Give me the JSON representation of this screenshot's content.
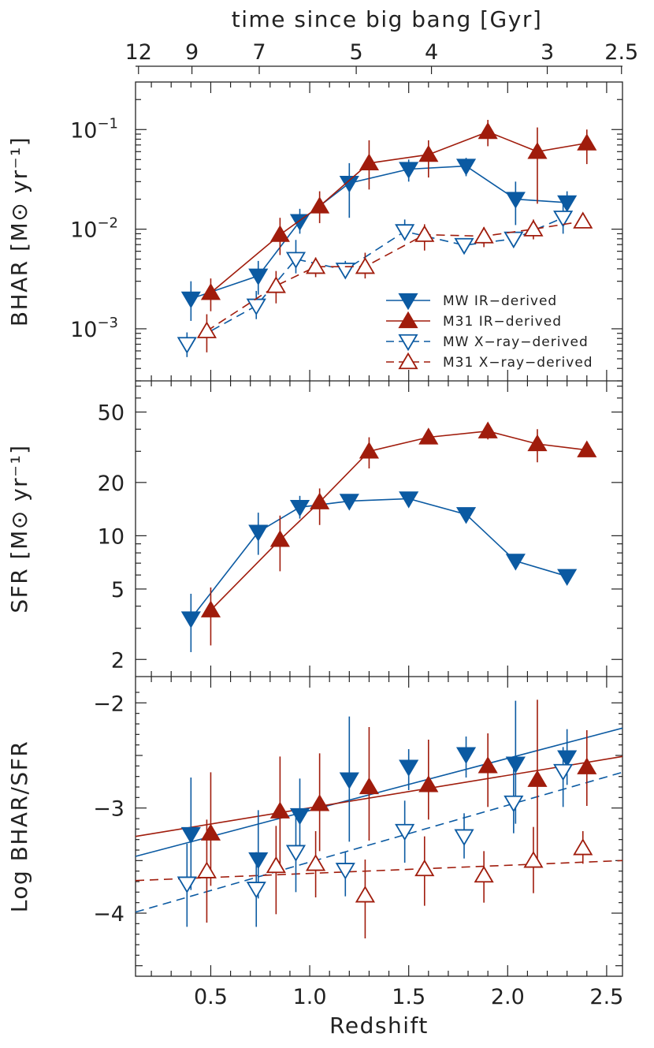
{
  "chart_data": {
    "type": "scatter",
    "colors": {
      "mw": "#0b5aa2",
      "m31": "#a01c0c"
    },
    "top_axis": {
      "label": "time since big bang [Gyr]",
      "ticks": [
        {
          "z": 0.135,
          "label": "12"
        },
        {
          "z": 0.405,
          "label": "9"
        },
        {
          "z": 0.745,
          "label": "7"
        },
        {
          "z": 1.235,
          "label": "5"
        },
        {
          "z": 1.615,
          "label": "4"
        },
        {
          "z": 2.2,
          "label": "3"
        },
        {
          "z": 2.575,
          "label": "2.5"
        }
      ]
    },
    "x_axis": {
      "label": "Redshift",
      "xlim": [
        0.12,
        2.58
      ],
      "ticks": [
        {
          "value": 0.5,
          "label": "0.5"
        },
        {
          "value": 1.0,
          "label": "1.0"
        },
        {
          "value": 1.5,
          "label": "1.5"
        },
        {
          "value": 2.0,
          "label": "2.0"
        },
        {
          "value": 2.5,
          "label": "2.5"
        }
      ]
    },
    "panels": [
      {
        "id": "bhar",
        "ylabel": "BHAR [M⊙ yr⁻¹]",
        "scale": "log",
        "ylim": [
          0.0003,
          0.3
        ],
        "ticks": [
          {
            "value": 0.1,
            "base": "10",
            "exp": "−1"
          },
          {
            "value": 0.01,
            "base": "10",
            "exp": "−2"
          },
          {
            "value": 0.001,
            "base": "10",
            "exp": "−3"
          }
        ],
        "legend": {
          "position": "bottom-right",
          "entries": [
            {
              "label": "MW  IR−derived",
              "series": "mw_ir"
            },
            {
              "label": "M31  IR−derived",
              "series": "m31_ir"
            },
            {
              "label": "MW  X−ray−derived",
              "series": "mw_x"
            },
            {
              "label": "M31  X−ray−derived",
              "series": "m31_x"
            }
          ]
        },
        "series": [
          {
            "id": "mw_ir",
            "name": "MW IR-derived",
            "color": "mw",
            "marker": "down",
            "filled": true,
            "dashed": false,
            "points": [
              {
                "x": 0.4,
                "y": 0.002,
                "lo": 0.0012,
                "hi": 0.003
              },
              {
                "x": 0.74,
                "y": 0.0034,
                "lo": 0.0022,
                "hi": 0.0048
              },
              {
                "x": 0.95,
                "y": 0.012,
                "lo": 0.009,
                "hi": 0.016
              },
              {
                "x": 1.2,
                "y": 0.029,
                "lo": 0.013,
                "hi": 0.046
              },
              {
                "x": 1.5,
                "y": 0.04,
                "lo": 0.03,
                "hi": 0.05
              },
              {
                "x": 1.79,
                "y": 0.043,
                "lo": 0.034,
                "hi": 0.052
              },
              {
                "x": 2.04,
                "y": 0.02,
                "lo": 0.011,
                "hi": 0.03
              },
              {
                "x": 2.3,
                "y": 0.0185,
                "lo": 0.0135,
                "hi": 0.024
              }
            ]
          },
          {
            "id": "m31_ir",
            "name": "M31 IR-derived",
            "color": "m31",
            "marker": "up",
            "filled": true,
            "dashed": false,
            "points": [
              {
                "x": 0.5,
                "y": 0.0023,
                "lo": 0.0015,
                "hi": 0.0032
              },
              {
                "x": 0.85,
                "y": 0.0088,
                "lo": 0.0055,
                "hi": 0.013
              },
              {
                "x": 1.05,
                "y": 0.017,
                "lo": 0.0115,
                "hi": 0.024
              },
              {
                "x": 1.3,
                "y": 0.046,
                "lo": 0.025,
                "hi": 0.078
              },
              {
                "x": 1.6,
                "y": 0.056,
                "lo": 0.033,
                "hi": 0.078
              },
              {
                "x": 1.9,
                "y": 0.095,
                "lo": 0.068,
                "hi": 0.125
              },
              {
                "x": 2.15,
                "y": 0.06,
                "lo": 0.018,
                "hi": 0.105
              },
              {
                "x": 2.4,
                "y": 0.073,
                "lo": 0.045,
                "hi": 0.1
              }
            ]
          },
          {
            "id": "mw_x",
            "name": "MW X-ray-derived",
            "color": "mw",
            "marker": "down",
            "filled": false,
            "dashed": true,
            "points": [
              {
                "x": 0.38,
                "y": 0.0007,
                "lo": 0.00052,
                "hi": 0.00092
              },
              {
                "x": 0.73,
                "y": 0.0017,
                "lo": 0.00125,
                "hi": 0.0024
              },
              {
                "x": 0.93,
                "y": 0.005,
                "lo": 0.0036,
                "hi": 0.0078
              },
              {
                "x": 1.18,
                "y": 0.0039,
                "lo": 0.0032,
                "hi": 0.0048
              },
              {
                "x": 1.48,
                "y": 0.0095,
                "lo": 0.0077,
                "hi": 0.0125
              },
              {
                "x": 1.78,
                "y": 0.0069,
                "lo": 0.006,
                "hi": 0.008
              },
              {
                "x": 2.03,
                "y": 0.008,
                "lo": 0.007,
                "hi": 0.0092
              },
              {
                "x": 2.28,
                "y": 0.013,
                "lo": 0.009,
                "hi": 0.018
              }
            ]
          },
          {
            "id": "m31_x",
            "name": "M31 X-ray-derived",
            "color": "m31",
            "marker": "up",
            "filled": false,
            "dashed": true,
            "points": [
              {
                "x": 0.48,
                "y": 0.00095,
                "lo": 0.00058,
                "hi": 0.0014
              },
              {
                "x": 0.83,
                "y": 0.0027,
                "lo": 0.0018,
                "hi": 0.0038
              },
              {
                "x": 1.03,
                "y": 0.0042,
                "lo": 0.0033,
                "hi": 0.0052
              },
              {
                "x": 1.28,
                "y": 0.0042,
                "lo": 0.0032,
                "hi": 0.0058
              },
              {
                "x": 1.58,
                "y": 0.0088,
                "lo": 0.0061,
                "hi": 0.0112
              },
              {
                "x": 1.88,
                "y": 0.0085,
                "lo": 0.0066,
                "hi": 0.0105
              },
              {
                "x": 2.13,
                "y": 0.01,
                "lo": 0.0079,
                "hi": 0.0125
              },
              {
                "x": 2.38,
                "y": 0.012,
                "lo": 0.0105,
                "hi": 0.0138
              }
            ]
          }
        ]
      },
      {
        "id": "sfr",
        "ylabel": "SFR [M⊙ yr⁻¹]",
        "scale": "log",
        "ylim": [
          1.6,
          75
        ],
        "ticks": [
          {
            "value": 50,
            "label": "50"
          },
          {
            "value": 20,
            "label": "20"
          },
          {
            "value": 10,
            "label": "10"
          },
          {
            "value": 5,
            "label": "5"
          },
          {
            "value": 2,
            "label": "2"
          }
        ],
        "series": [
          {
            "id": "mw_sfr",
            "name": "MW",
            "color": "mw",
            "marker": "down",
            "filled": true,
            "dashed": false,
            "points": [
              {
                "x": 0.4,
                "y": 3.4,
                "lo": 2.2,
                "hi": 4.7
              },
              {
                "x": 0.74,
                "y": 10.5,
                "lo": 7.8,
                "hi": 13.5
              },
              {
                "x": 0.95,
                "y": 14.5,
                "lo": 12.5,
                "hi": 16.8
              },
              {
                "x": 1.2,
                "y": 15.7,
                "lo": 14.2,
                "hi": 17.2
              },
              {
                "x": 1.5,
                "y": 16.2,
                "lo": 15.0,
                "hi": 17.4
              },
              {
                "x": 1.79,
                "y": 13.2,
                "lo": 12.3,
                "hi": 14.1
              },
              {
                "x": 2.04,
                "y": 7.2,
                "lo": 6.7,
                "hi": 7.7
              },
              {
                "x": 2.3,
                "y": 5.9,
                "lo": 5.5,
                "hi": 6.3
              }
            ]
          },
          {
            "id": "m31_sfr",
            "name": "M31",
            "color": "m31",
            "marker": "up",
            "filled": true,
            "dashed": false,
            "points": [
              {
                "x": 0.5,
                "y": 3.8,
                "lo": 2.4,
                "hi": 5.1
              },
              {
                "x": 0.85,
                "y": 9.5,
                "lo": 6.3,
                "hi": 13.0
              },
              {
                "x": 1.05,
                "y": 15.5,
                "lo": 11.5,
                "hi": 18.5
              },
              {
                "x": 1.3,
                "y": 30.0,
                "lo": 24.0,
                "hi": 36.0
              },
              {
                "x": 1.6,
                "y": 36.0,
                "lo": 33.0,
                "hi": 39.0
              },
              {
                "x": 1.9,
                "y": 39.0,
                "lo": 35.0,
                "hi": 43.0
              },
              {
                "x": 2.15,
                "y": 33.0,
                "lo": 26.0,
                "hi": 40.0
              },
              {
                "x": 2.4,
                "y": 30.5,
                "lo": 28.0,
                "hi": 33.0
              }
            ]
          }
        ]
      },
      {
        "id": "ratio",
        "ylabel": "Log BHAR/SFR",
        "scale": "linear",
        "ylim": [
          -4.6,
          -1.75
        ],
        "ticks": [
          {
            "value": -2,
            "label": "−2"
          },
          {
            "value": -3,
            "label": "−3"
          },
          {
            "value": -4,
            "label": "−4"
          }
        ],
        "fits": [
          {
            "name": "MW IR fit",
            "color": "mw",
            "dashed": false,
            "x": [
              0.12,
              2.58
            ],
            "y": [
              -3.46,
              -2.24
            ]
          },
          {
            "name": "M31 IR fit",
            "color": "m31",
            "dashed": false,
            "x": [
              0.12,
              2.58
            ],
            "y": [
              -3.27,
              -2.51
            ]
          },
          {
            "name": "MW X-ray fit",
            "color": "mw",
            "dashed": true,
            "x": [
              0.12,
              2.58
            ],
            "y": [
              -3.99,
              -2.66
            ]
          },
          {
            "name": "M31 X-ray fit",
            "color": "m31",
            "dashed": true,
            "x": [
              0.12,
              2.58
            ],
            "y": [
              -3.69,
              -3.5
            ]
          }
        ],
        "series": [
          {
            "id": "mw_ir_ratio",
            "name": "MW IR-derived",
            "color": "mw",
            "marker": "down",
            "filled": true,
            "connect": false,
            "points": [
              {
                "x": 0.4,
                "y": -3.25,
                "lo": -3.78,
                "hi": -2.71
              },
              {
                "x": 0.74,
                "y": -3.49,
                "lo": -3.86,
                "hi": -3.02
              },
              {
                "x": 0.95,
                "y": -3.07,
                "lo": -3.38,
                "hi": -2.72
              },
              {
                "x": 1.2,
                "y": -2.73,
                "lo": -3.32,
                "hi": -2.13
              },
              {
                "x": 1.5,
                "y": -2.61,
                "lo": -2.83,
                "hi": -2.44
              },
              {
                "x": 1.79,
                "y": -2.49,
                "lo": -2.71,
                "hi": -2.32
              },
              {
                "x": 2.04,
                "y": -2.58,
                "lo": -3.15,
                "hi": -1.98
              },
              {
                "x": 2.3,
                "y": -2.52,
                "lo": -2.78,
                "hi": -2.25
              }
            ]
          },
          {
            "id": "m31_ir_ratio",
            "name": "M31 IR-derived",
            "color": "m31",
            "marker": "up",
            "filled": true,
            "connect": false,
            "points": [
              {
                "x": 0.5,
                "y": -3.24,
                "lo": -3.74,
                "hi": -2.66
              },
              {
                "x": 0.85,
                "y": -3.03,
                "lo": -3.54,
                "hi": -2.51
              },
              {
                "x": 1.05,
                "y": -2.96,
                "lo": -3.41,
                "hi": -2.48
              },
              {
                "x": 1.3,
                "y": -2.8,
                "lo": -3.31,
                "hi": -2.23
              },
              {
                "x": 1.6,
                "y": -2.78,
                "lo": -3.11,
                "hi": -2.35
              },
              {
                "x": 1.9,
                "y": -2.6,
                "lo": -2.99,
                "hi": -2.29
              },
              {
                "x": 2.15,
                "y": -2.73,
                "lo": -3.53,
                "hi": -1.97
              },
              {
                "x": 2.4,
                "y": -2.61,
                "lo": -2.98,
                "hi": -2.26
              }
            ]
          },
          {
            "id": "mw_x_ratio",
            "name": "MW X-ray-derived",
            "color": "mw",
            "marker": "down",
            "filled": false,
            "connect": false,
            "points": [
              {
                "x": 0.38,
                "y": -3.72,
                "lo": -4.13,
                "hi": -3.34
              },
              {
                "x": 0.73,
                "y": -3.77,
                "lo": -4.13,
                "hi": -3.42
              },
              {
                "x": 0.93,
                "y": -3.42,
                "lo": -3.8,
                "hi": -3.04
              },
              {
                "x": 1.18,
                "y": -3.59,
                "lo": -3.84,
                "hi": -3.42
              },
              {
                "x": 1.48,
                "y": -3.22,
                "lo": -3.52,
                "hi": -2.93
              },
              {
                "x": 1.78,
                "y": -3.27,
                "lo": -3.48,
                "hi": -3.05
              },
              {
                "x": 2.03,
                "y": -2.95,
                "lo": -3.24,
                "hi": -2.63
              },
              {
                "x": 2.28,
                "y": -2.65,
                "lo": -2.99,
                "hi": -2.42
              }
            ]
          },
          {
            "id": "m31_x_ratio",
            "name": "M31 X-ray-derived",
            "color": "m31",
            "marker": "up",
            "filled": false,
            "connect": false,
            "points": [
              {
                "x": 0.48,
                "y": -3.6,
                "lo": -4.09,
                "hi": -3.11
              },
              {
                "x": 0.83,
                "y": -3.55,
                "lo": -4.01,
                "hi": -3.17
              },
              {
                "x": 1.03,
                "y": -3.53,
                "lo": -3.85,
                "hi": -3.22
              },
              {
                "x": 1.28,
                "y": -3.83,
                "lo": -4.24,
                "hi": -3.49
              },
              {
                "x": 1.58,
                "y": -3.58,
                "lo": -3.93,
                "hi": -3.27
              },
              {
                "x": 1.88,
                "y": -3.64,
                "lo": -3.9,
                "hi": -3.41
              },
              {
                "x": 2.13,
                "y": -3.5,
                "lo": -3.81,
                "hi": -3.18
              },
              {
                "x": 2.38,
                "y": -3.38,
                "lo": -3.53,
                "hi": -3.22
              }
            ]
          }
        ]
      }
    ]
  }
}
